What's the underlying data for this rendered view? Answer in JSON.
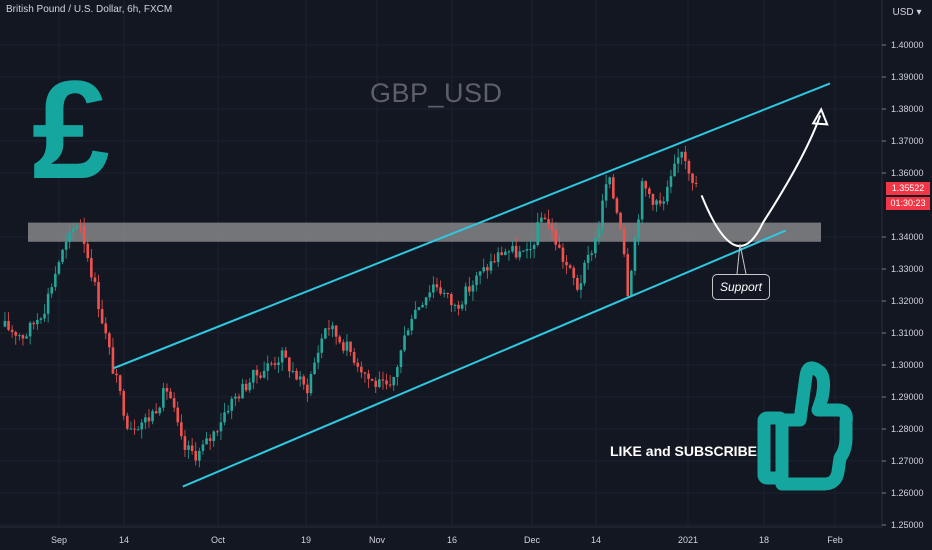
{
  "header": {
    "title": "British Pound / U.S. Dollar, 6h, FXCM",
    "watermark": "GBP_USD"
  },
  "annotations": {
    "support_label": "Support",
    "promo_text": "LIKE and SUBSCRIBE",
    "pound_symbol": "£",
    "thumbs_up_icon": "thumbs-up-icon"
  },
  "y_axis": {
    "currency": "USD",
    "ticks": [
      "1.40000",
      "1.39000",
      "1.38000",
      "1.37000",
      "1.36000",
      "1.34000",
      "1.33000",
      "1.32000",
      "1.31000",
      "1.30000",
      "1.29000",
      "1.28000",
      "1.27000",
      "1.26000",
      "1.25000"
    ]
  },
  "x_axis": {
    "ticks": [
      "Sep",
      "14",
      "Oct",
      "19",
      "Nov",
      "16",
      "Dec",
      "14",
      "2021",
      "18",
      "Feb"
    ]
  },
  "price_tag": "1.35522",
  "countdown": "01:30:23",
  "colors": {
    "background": "#131722",
    "up": "#26a69a",
    "down": "#ef5350",
    "channel": "#2ec8e0",
    "zone": "#9a9a9a",
    "brand": "#16a6a0",
    "price_tag": "#f23645"
  },
  "chart_data": {
    "type": "candlestick",
    "symbol": "British Pound / U.S. Dollar, 6h, FXCM",
    "ylim": [
      1.25,
      1.41
    ],
    "close_path": [
      {
        "x": "Aug 17",
        "y": 1.312
      },
      {
        "x": "Aug 21",
        "y": 1.309
      },
      {
        "x": "Aug 25",
        "y": 1.318
      },
      {
        "x": "Aug 28",
        "y": 1.333
      },
      {
        "x": "Sep 1",
        "y": 1.346
      },
      {
        "x": "Sep 4",
        "y": 1.326
      },
      {
        "x": "Sep 8",
        "y": 1.298
      },
      {
        "x": "Sep 11",
        "y": 1.281
      },
      {
        "x": "Sep 15",
        "y": 1.283
      },
      {
        "x": "Sep 19",
        "y": 1.293
      },
      {
        "x": "Sep 22",
        "y": 1.274
      },
      {
        "x": "Sep 25",
        "y": 1.272
      },
      {
        "x": "Sep 28",
        "y": 1.278
      },
      {
        "x": "Oct 1",
        "y": 1.287
      },
      {
        "x": "Oct 6",
        "y": 1.296
      },
      {
        "x": "Oct 12",
        "y": 1.303
      },
      {
        "x": "Oct 17",
        "y": 1.292
      },
      {
        "x": "Oct 21",
        "y": 1.313
      },
      {
        "x": "Oct 26",
        "y": 1.304
      },
      {
        "x": "Oct 30",
        "y": 1.295
      },
      {
        "x": "Nov 3",
        "y": 1.292
      },
      {
        "x": "Nov 7",
        "y": 1.315
      },
      {
        "x": "Nov 12",
        "y": 1.326
      },
      {
        "x": "Nov 16",
        "y": 1.318
      },
      {
        "x": "Nov 21",
        "y": 1.328
      },
      {
        "x": "Nov 26",
        "y": 1.336
      },
      {
        "x": "Dec 1",
        "y": 1.334
      },
      {
        "x": "Dec 4",
        "y": 1.348
      },
      {
        "x": "Dec 8",
        "y": 1.333
      },
      {
        "x": "Dec 11",
        "y": 1.324
      },
      {
        "x": "Dec 15",
        "y": 1.342
      },
      {
        "x": "Dec 17",
        "y": 1.359
      },
      {
        "x": "Dec 20",
        "y": 1.342
      },
      {
        "x": "Dec 21",
        "y": 1.323
      },
      {
        "x": "Dec 24",
        "y": 1.356
      },
      {
        "x": "Dec 28",
        "y": 1.349
      },
      {
        "x": "Jan 1",
        "y": 1.368
      },
      {
        "x": "Jan 4",
        "y": 1.3552
      }
    ],
    "last_price": 1.35522,
    "resistance_zone": [
      1.3385,
      1.3445
    ],
    "channel_upper": [
      {
        "x": "Sep 8",
        "y": 1.299
      },
      {
        "x": "Jan 31",
        "y": 1.388
      }
    ],
    "channel_lower": [
      {
        "x": "Sep 22",
        "y": 1.262
      },
      {
        "x": "Jan 22",
        "y": 1.342
      }
    ],
    "projection": [
      {
        "x": "Jan 5",
        "y": 1.353
      },
      {
        "x": "Jan 15",
        "y": 1.342
      },
      {
        "x": "Jan 29",
        "y": 1.378
      }
    ]
  }
}
